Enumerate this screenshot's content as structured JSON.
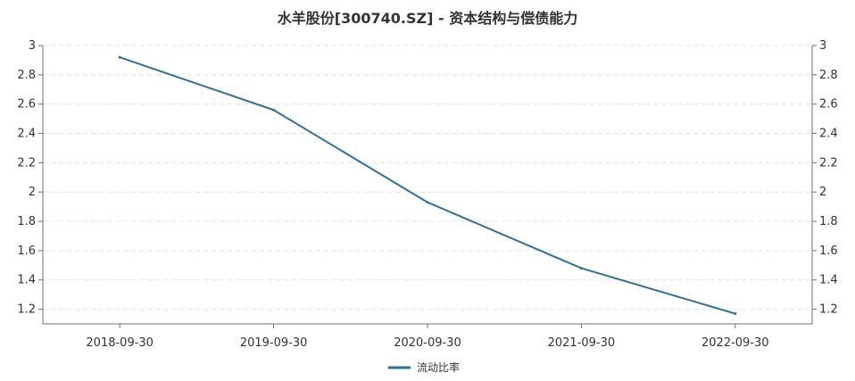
{
  "chart_data": {
    "type": "line",
    "title": "水羊股份[300740.SZ] - 资本结构与偿债能力",
    "categories": [
      "2018-09-30",
      "2019-09-30",
      "2020-09-30",
      "2021-09-30",
      "2022-09-30"
    ],
    "series": [
      {
        "name": "流动比率",
        "values": [
          2.92,
          2.56,
          1.93,
          1.48,
          1.17
        ],
        "color": "#2e7299"
      }
    ],
    "ylim": [
      1.1,
      3.0
    ],
    "yticks": [
      1.2,
      1.4,
      1.6,
      1.8,
      2,
      2.2,
      2.4,
      2.6,
      2.8,
      3
    ],
    "ytick_labels": [
      "1.2",
      "1.4",
      "1.6",
      "1.8",
      "2",
      "2.2",
      "2.4",
      "2.6",
      "2.8",
      "3"
    ],
    "grid": true,
    "legend_position": "bottom-center",
    "xlabel": "",
    "ylabel": ""
  },
  "colors": {
    "axis": "#6e7079",
    "grid": "#e0e0e0",
    "text": "#333333"
  }
}
